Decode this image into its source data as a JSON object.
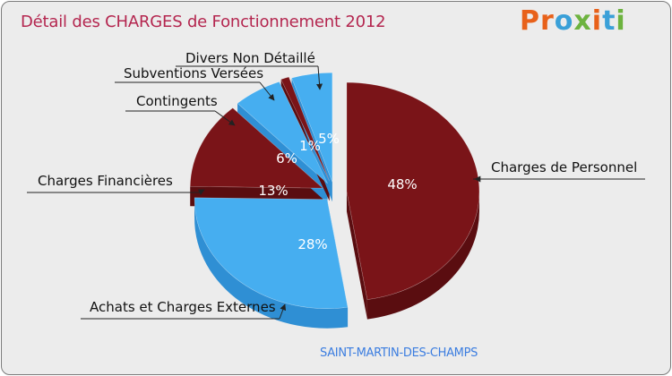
{
  "title": "Détail des CHARGES de Fonctionnement 2012",
  "logo": {
    "text": "Proxiti",
    "letters": [
      "P",
      "r",
      "o",
      "x",
      "i",
      "t",
      "i"
    ],
    "colors": [
      "#e8611a",
      "#e8611a",
      "#3aa0d8",
      "#6db33f",
      "#e8611a",
      "#3aa0d8",
      "#6db33f"
    ]
  },
  "commune": "SAINT-MARTIN-DES-CHAMPS",
  "colors": {
    "dark_red": "#7a1418",
    "dark_red_side": "#5a0d10",
    "light_blue": "#46aef0",
    "light_blue_side": "#2f8fd4",
    "label_line": "#222222",
    "pct_text": "#ffffff"
  },
  "chart_data": {
    "type": "pie",
    "title": "Détail des CHARGES de Fonctionnement 2012",
    "slices": [
      {
        "label": "Charges de Personnel",
        "value": 48,
        "pct_label": "48%",
        "color": "dark_red"
      },
      {
        "label": "Achats et Charges Externes",
        "value": 28,
        "pct_label": "28%",
        "color": "light_blue"
      },
      {
        "label": "Charges Financières",
        "value": 13,
        "pct_label": "13%",
        "color": "dark_red"
      },
      {
        "label": "Contingents",
        "value": 6,
        "pct_label": "6%",
        "color": "light_blue"
      },
      {
        "label": "Subventions Versées",
        "value": 1,
        "pct_label": "1%",
        "color": "dark_red"
      },
      {
        "label": "Divers Non Détaillé",
        "value": 5,
        "pct_label": "5%",
        "color": "light_blue"
      }
    ]
  }
}
